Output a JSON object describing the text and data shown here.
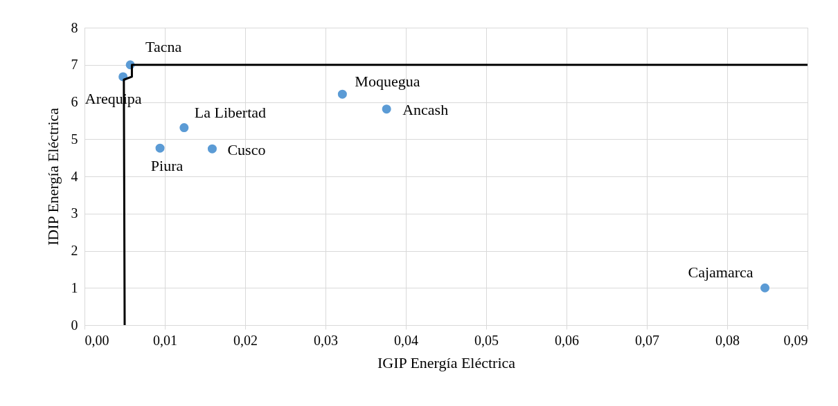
{
  "chart_data": {
    "type": "scatter",
    "xlabel": "IGIP Energía Eléctrica",
    "ylabel": "IDIP Energía Eléctrica",
    "xlim": [
      0,
      0.09
    ],
    "xticks": [
      {
        "value": 0,
        "label": "0,00"
      },
      {
        "value": 0.01,
        "label": "0,01"
      },
      {
        "value": 0.02,
        "label": "0,02"
      },
      {
        "value": 0.03,
        "label": "0,03"
      },
      {
        "value": 0.04,
        "label": "0,04"
      },
      {
        "value": 0.05,
        "label": "0,05"
      },
      {
        "value": 0.06,
        "label": "0,06"
      },
      {
        "value": 0.07,
        "label": "0,07"
      },
      {
        "value": 0.08,
        "label": "0,08"
      },
      {
        "value": 0.09,
        "label": "0,09"
      }
    ],
    "ylim": [
      0,
      8
    ],
    "yticks": [
      0,
      1,
      2,
      3,
      4,
      5,
      6,
      7,
      8
    ],
    "grid": true,
    "marker": "circle",
    "series": [
      {
        "color": "#5b9bd5",
        "x": [
          0.0057,
          0.0048,
          0.0124,
          0.0094,
          0.0159,
          0.0321,
          0.0376,
          0.0847
        ],
        "values": [
          7.0,
          6.68,
          5.31,
          4.76,
          4.74,
          6.21,
          5.81,
          1.0
        ]
      },
      {
        "type": "line",
        "color": "#000000",
        "line_style": "solid",
        "marker": "none",
        "x": [
          0.005,
          0.0049,
          0.0059,
          0.0059,
          0.09
        ],
        "values": [
          0,
          6.6,
          6.68,
          7.0,
          7.0
        ]
      }
    ],
    "annotations": [
      {
        "text": "Tacna",
        "x": 0.0057,
        "y": 7.0
      },
      {
        "text": "Arequipa",
        "x": 0.0048,
        "y": 6.68
      },
      {
        "text": "La Libertad",
        "x": 0.0124,
        "y": 5.31
      },
      {
        "text": "Piura",
        "x": 0.0094,
        "y": 4.76
      },
      {
        "text": "Cusco",
        "x": 0.0159,
        "y": 4.74
      },
      {
        "text": "Moquegua",
        "x": 0.0321,
        "y": 6.21
      },
      {
        "text": "Ancash",
        "x": 0.0376,
        "y": 5.81
      },
      {
        "text": "Cajamarca",
        "x": 0.0847,
        "y": 1.0
      }
    ]
  }
}
